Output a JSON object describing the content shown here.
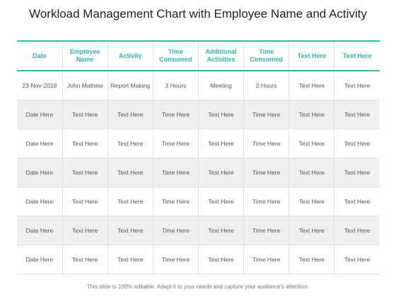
{
  "title": "Workload Management Chart with Employee Name and Activity",
  "table": {
    "headers": [
      "Date",
      "Employee Name",
      "Activity",
      "Time Consumed",
      "Additional Activities",
      "Time Consumed",
      "Text Here",
      "Text Here"
    ],
    "rows": [
      [
        "23-Nov-2018",
        "John Mathew",
        "Report Making",
        "3 Hours",
        "Meeting",
        "2 Hours",
        "Text Here",
        "Text Here"
      ],
      [
        "Date Here",
        "Text Here",
        "Text Here",
        "Time Here",
        "Text Here",
        "Time Here",
        "Text Here",
        "Text Here"
      ],
      [
        "Date Here",
        "Text Here",
        "Text Here",
        "Time Here",
        "Text Here",
        "Time Here",
        "Text Here",
        "Text Here"
      ],
      [
        "Date Here",
        "Text Here",
        "Text Here",
        "Time Here",
        "Text Here",
        "Time Here",
        "Text Here",
        "Text Here"
      ],
      [
        "Date Here",
        "Text Here",
        "Text Here",
        "Time Here",
        "Text Here",
        "Time Here",
        "Text Here",
        "Text Here"
      ],
      [
        "Date Here",
        "Text Here",
        "Text Here",
        "Time Here",
        "Text Here",
        "Time Here",
        "Text Here",
        "Text Here"
      ],
      [
        "Date Here",
        "Text Here",
        "Text Here",
        "Time Here",
        "Text Here",
        "Time Here",
        "Text Here",
        "Text Here"
      ]
    ]
  },
  "footer": "This slide is 100% editable. Adapt it to your needs and capture your audience's attention.",
  "colors": {
    "accent": "#2fb5b2",
    "row_alt": "#efefef",
    "grid": "#e2e2e2"
  }
}
